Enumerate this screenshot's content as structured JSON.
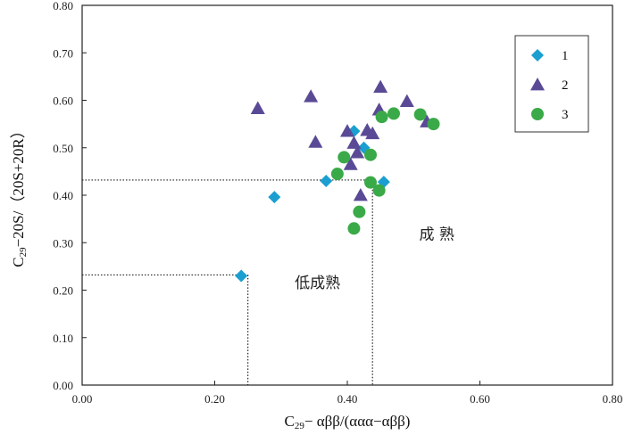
{
  "chart_data": {
    "type": "scatter",
    "xlabel": {
      "main": "C",
      "sub": "29",
      "rest": "− αββ/(ααα−αββ)"
    },
    "ylabel": {
      "main": "C",
      "sub": "29",
      "rest": "−20S/（20S+20R）"
    },
    "xlim": [
      0,
      0.8
    ],
    "ylim": [
      0,
      0.8
    ],
    "x_ticks": [
      "0.00",
      "0.20",
      "0.40",
      "0.60",
      "0.80"
    ],
    "x_tick_values": [
      0,
      0.2,
      0.4,
      0.6,
      0.8
    ],
    "y_ticks": [
      "0.00",
      "0.10",
      "0.20",
      "0.30",
      "0.40",
      "0.50",
      "0.60",
      "0.70",
      "0.80"
    ],
    "y_tick_values": [
      0,
      0.1,
      0.2,
      0.3,
      0.4,
      0.5,
      0.6,
      0.7,
      0.8
    ],
    "grid": false,
    "legend_position": "top-right",
    "series": [
      {
        "name": "1",
        "marker": "diamond",
        "color": "#1a9fd0",
        "points": [
          [
            0.24,
            0.23
          ],
          [
            0.29,
            0.396
          ],
          [
            0.368,
            0.43
          ],
          [
            0.41,
            0.535
          ],
          [
            0.425,
            0.5
          ],
          [
            0.455,
            0.428
          ]
        ]
      },
      {
        "name": "2",
        "marker": "triangle",
        "color": "#5a4a96",
        "points": [
          [
            0.265,
            0.583
          ],
          [
            0.345,
            0.608
          ],
          [
            0.352,
            0.512
          ],
          [
            0.4,
            0.535
          ],
          [
            0.405,
            0.465
          ],
          [
            0.41,
            0.51
          ],
          [
            0.415,
            0.49
          ],
          [
            0.42,
            0.4
          ],
          [
            0.43,
            0.537
          ],
          [
            0.438,
            0.53
          ],
          [
            0.448,
            0.58
          ],
          [
            0.45,
            0.628
          ],
          [
            0.49,
            0.598
          ],
          [
            0.52,
            0.555
          ]
        ]
      },
      {
        "name": "3",
        "marker": "circle",
        "color": "#3aaa48",
        "points": [
          [
            0.385,
            0.445
          ],
          [
            0.395,
            0.48
          ],
          [
            0.41,
            0.33
          ],
          [
            0.418,
            0.365
          ],
          [
            0.435,
            0.485
          ],
          [
            0.435,
            0.427
          ],
          [
            0.448,
            0.41
          ],
          [
            0.452,
            0.565
          ],
          [
            0.47,
            0.572
          ],
          [
            0.51,
            0.57
          ],
          [
            0.53,
            0.55
          ]
        ]
      }
    ],
    "reference_lines": [
      {
        "y": 0.232,
        "x": 0.25
      },
      {
        "y": 0.432,
        "x": 0.438
      }
    ],
    "annotations": [
      {
        "text": "低成熟",
        "x": 0.355,
        "y": 0.205
      },
      {
        "text": "成 熟",
        "x": 0.535,
        "y": 0.307
      }
    ]
  }
}
